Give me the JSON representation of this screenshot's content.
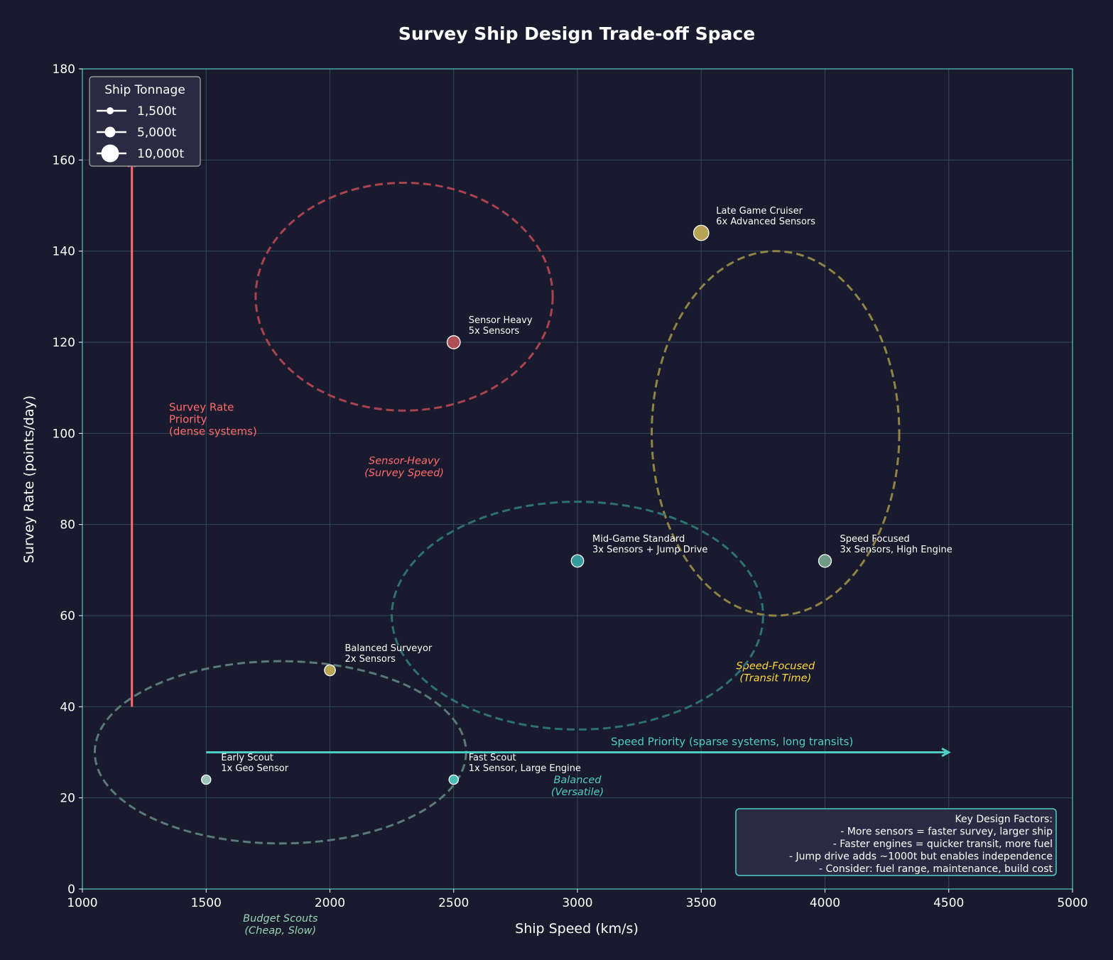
{
  "chart_data": {
    "type": "scatter",
    "title": "Survey Ship Design Trade-off Space",
    "xlabel": "Ship Speed (km/s)",
    "ylabel": "Survey Rate (points/day)",
    "xlim": [
      1000,
      5000
    ],
    "ylim": [
      0,
      180
    ],
    "xticks": [
      1000,
      1500,
      2000,
      2500,
      3000,
      3500,
      4000,
      4500,
      5000
    ],
    "yticks": [
      0,
      20,
      40,
      60,
      80,
      100,
      120,
      140,
      160,
      180
    ],
    "grid": true,
    "colors": {
      "background": "#191a2e",
      "axis": "#4ecdc4",
      "grid": "#2f4a55",
      "text": "#ffffff"
    },
    "points": [
      {
        "name": "Early Scout",
        "detail": "1x Geo Sensor",
        "x": 1500,
        "y": 24,
        "tonnage": 1500,
        "color": "#a8d8c8"
      },
      {
        "name": "Balanced Surveyor",
        "detail": "2x Sensors",
        "x": 2000,
        "y": 48,
        "tonnage": 3000,
        "color": "#c9b458"
      },
      {
        "name": "Fast Scout",
        "detail": "1x Sensor, Large Engine",
        "x": 2500,
        "y": 24,
        "tonnage": 1500,
        "color": "#4ecdc4"
      },
      {
        "name": "Sensor Heavy",
        "detail": "5x Sensors",
        "x": 2500,
        "y": 120,
        "tonnage": 6000,
        "color": "#c0545c"
      },
      {
        "name": "Mid-Game Standard",
        "detail": "3x Sensors + Jump Drive",
        "x": 3000,
        "y": 72,
        "tonnage": 5000,
        "color": "#3aa8a8"
      },
      {
        "name": "Speed Focused",
        "detail": "3x Sensors, High Engine",
        "x": 4000,
        "y": 72,
        "tonnage": 5500,
        "color": "#7aa890"
      },
      {
        "name": "Late Game Cruiser",
        "detail": "6x Advanced Sensors",
        "x": 3500,
        "y": 144,
        "tonnage": 10000,
        "color": "#c9b458"
      }
    ],
    "regions": [
      {
        "label": "Sensor-Heavy",
        "sublabel": "(Survey Speed)",
        "cx": 2300,
        "cy": 130,
        "rx": 600,
        "ry": 25,
        "label_x": 2300,
        "label_y": 92,
        "color": "#a8434f",
        "text_color": "#ff6b6b"
      },
      {
        "label": "Speed-Focused",
        "sublabel": "(Transit Time)",
        "cx": 3800,
        "cy": 100,
        "rx": 500,
        "ry": 40,
        "label_x": 3800,
        "label_y": 47,
        "color": "#8f8345",
        "text_color": "#ffd93d"
      },
      {
        "label": "Balanced",
        "sublabel": "(Versatile)",
        "cx": 3000,
        "cy": 60,
        "rx": 750,
        "ry": 25,
        "label_x": 3000,
        "label_y": 22,
        "color": "#2d7075",
        "text_color": "#4ecdc4"
      },
      {
        "label": "Budget Scouts",
        "sublabel": "(Cheap, Slow)",
        "cx": 1800,
        "cy": 30,
        "rx": 750,
        "ry": 20,
        "label_x": 1800,
        "label_y": -2,
        "color": "#5a7a78",
        "text_color": "#95d5b2"
      }
    ],
    "arrows": [
      {
        "lines": [
          "Survey Rate",
          "Priority",
          "(dense systems)"
        ],
        "from": [
          1200,
          40
        ],
        "to": [
          1200,
          160
        ],
        "color": "#ff6b6b"
      },
      {
        "lines": [
          "Speed Priority (sparse systems, long transits)"
        ],
        "from": [
          1500,
          30
        ],
        "to": [
          4500,
          30
        ],
        "color": "#4ecdc4"
      }
    ],
    "legend": {
      "title": "Ship Tonnage",
      "placement": "top-left",
      "entries": [
        {
          "label": "1,500t",
          "tonnage": 1500
        },
        {
          "label": "5,000t",
          "tonnage": 5000
        },
        {
          "label": "10,000t",
          "tonnage": 10000
        }
      ]
    },
    "info_box": {
      "placement": "bottom-right",
      "lines": [
        "Key Design Factors:",
        "- More sensors = faster survey, larger ship",
        "- Faster engines = quicker transit, more fuel",
        "- Jump drive adds ~1000t but enables independence",
        "- Consider: fuel range, maintenance, build cost"
      ]
    }
  }
}
